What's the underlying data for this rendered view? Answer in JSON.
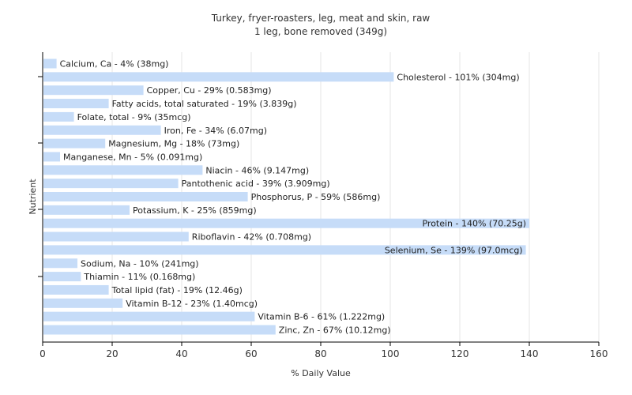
{
  "chart_data": {
    "type": "bar",
    "orientation": "horizontal",
    "title": "Turkey, fryer-roasters, leg, meat and skin, raw",
    "subtitle": "1 leg, bone removed (349g)",
    "xlabel": "% Daily Value",
    "ylabel": "Nutrient",
    "xlim": [
      0,
      160
    ],
    "xticks": [
      0,
      20,
      40,
      60,
      80,
      100,
      120,
      140,
      160
    ],
    "grid": true,
    "legend": "none",
    "bar_color": "#c6dcf8",
    "categories": [
      "Calcium, Ca",
      "Cholesterol",
      "Copper, Cu",
      "Fatty acids, total saturated",
      "Folate, total",
      "Iron, Fe",
      "Magnesium, Mg",
      "Manganese, Mn",
      "Niacin",
      "Pantothenic acid",
      "Phosphorus, P",
      "Potassium, K",
      "Protein",
      "Riboflavin",
      "Selenium, Se",
      "Sodium, Na",
      "Thiamin",
      "Total lipid (fat)",
      "Vitamin B-12",
      "Vitamin B-6",
      "Zinc, Zn"
    ],
    "values": [
      4,
      101,
      29,
      19,
      9,
      34,
      18,
      5,
      46,
      39,
      59,
      25,
      140,
      42,
      139,
      10,
      11,
      19,
      23,
      61,
      67
    ],
    "labels": [
      "Calcium, Ca - 4% (38mg)",
      "Cholesterol - 101% (304mg)",
      "Copper, Cu - 29% (0.583mg)",
      "Fatty acids, total saturated - 19% (3.839g)",
      "Folate, total - 9% (35mcg)",
      "Iron, Fe - 34% (6.07mg)",
      "Magnesium, Mg - 18% (73mg)",
      "Manganese, Mn - 5% (0.091mg)",
      "Niacin - 46% (9.147mg)",
      "Pantothenic acid - 39% (3.909mg)",
      "Phosphorus, P - 59% (586mg)",
      "Potassium, K - 25% (859mg)",
      "Protein - 140% (70.25g)",
      "Riboflavin - 42% (0.708mg)",
      "Selenium, Se - 139% (97.0mcg)",
      "Sodium, Na - 10% (241mg)",
      "Thiamin - 11% (0.168mg)",
      "Total lipid (fat) - 19% (12.46g)",
      "Vitamin B-12 - 23% (1.40mcg)",
      "Vitamin B-6 - 61% (1.222mg)",
      "Zinc, Zn - 67% (10.12mg)"
    ]
  }
}
